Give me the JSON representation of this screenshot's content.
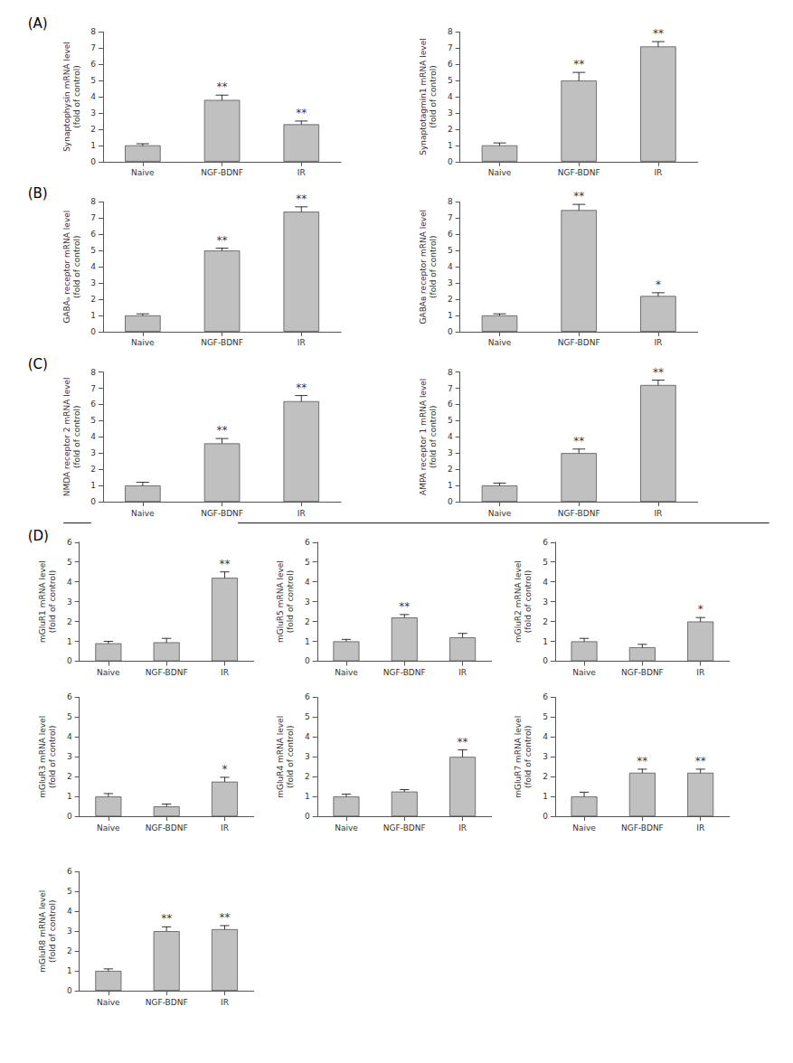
{
  "chart_data": [
    {
      "type": "bar",
      "section": "(A)",
      "ylabel": "Synaptophysin mRNA level\n(fold of control)",
      "categories": [
        "Naive",
        "NGF-BDNF",
        "IR"
      ],
      "values": [
        1.0,
        3.8,
        2.3
      ],
      "errors": [
        0.1,
        0.3,
        0.2
      ],
      "color": "#c0c0c0",
      "ylim": [
        0,
        8
      ],
      "yticks": [
        0,
        1,
        2,
        3,
        4,
        5,
        6,
        7,
        8
      ],
      "grid": false,
      "annotations": [
        {
          "x": "NGF-BDNF",
          "text": "**"
        },
        {
          "x": "IR",
          "text": "**"
        }
      ]
    },
    {
      "type": "bar",
      "ylabel": "Synaptotagmin1 mRNA level\n(fold of control)",
      "categories": [
        "Naive",
        "NGF-BDNF",
        "IR"
      ],
      "values": [
        1.0,
        5.0,
        7.1
      ],
      "errors": [
        0.15,
        0.5,
        0.3
      ],
      "color": "#c0c0c0",
      "ylim": [
        0,
        8
      ],
      "yticks": [
        0,
        1,
        2,
        3,
        4,
        5,
        6,
        7,
        8
      ],
      "grid": false,
      "annotations": [
        {
          "x": "NGF-BDNF",
          "text": "**"
        },
        {
          "x": "IR",
          "text": "**"
        }
      ]
    },
    {
      "type": "bar",
      "section": "(B)",
      "ylabel": "GABAₐ receptor mRNA level\n(fold of control)",
      "categories": [
        "Naive",
        "NGF-BDNF",
        "IR"
      ],
      "values": [
        1.0,
        5.0,
        7.4
      ],
      "errors": [
        0.1,
        0.15,
        0.3
      ],
      "color": "#c0c0c0",
      "ylim": [
        0,
        8
      ],
      "yticks": [
        0,
        1,
        2,
        3,
        4,
        5,
        6,
        7,
        8
      ],
      "grid": false,
      "annotations": [
        {
          "x": "NGF-BDNF",
          "text": "**"
        },
        {
          "x": "IR",
          "text": "**"
        }
      ]
    },
    {
      "type": "bar",
      "ylabel": "GABAʙ receptor mRNA level\n(fold of control)",
      "categories": [
        "Naive",
        "NGF-BDNF",
        "IR"
      ],
      "values": [
        1.0,
        7.5,
        2.2
      ],
      "errors": [
        0.1,
        0.35,
        0.2
      ],
      "color": "#c0c0c0",
      "ylim": [
        0,
        8
      ],
      "yticks": [
        0,
        1,
        2,
        3,
        4,
        5,
        6,
        7,
        8
      ],
      "grid": false,
      "annotations": [
        {
          "x": "NGF-BDNF",
          "text": "**"
        },
        {
          "x": "IR",
          "text": "*"
        }
      ]
    },
    {
      "type": "bar",
      "section": "(C)",
      "ylabel": "NMDA receptor 2 mRNA level\n(fold of control)",
      "categories": [
        "Naive",
        "NGF-BDNF",
        "IR"
      ],
      "values": [
        1.0,
        3.6,
        6.2
      ],
      "errors": [
        0.2,
        0.3,
        0.35
      ],
      "color": "#c0c0c0",
      "ylim": [
        0,
        8
      ],
      "yticks": [
        0,
        1,
        2,
        3,
        4,
        5,
        6,
        7,
        8
      ],
      "grid": false,
      "annotations": [
        {
          "x": "NGF-BDNF",
          "text": "**"
        },
        {
          "x": "IR",
          "text": "**"
        }
      ]
    },
    {
      "type": "bar",
      "ylabel": "AMPA receptor 1 mRNA level\n(fold of control)",
      "categories": [
        "Naive",
        "NGF-BDNF",
        "IR"
      ],
      "values": [
        1.0,
        3.0,
        7.2
      ],
      "errors": [
        0.15,
        0.25,
        0.3
      ],
      "color": "#c0c0c0",
      "ylim": [
        0,
        8
      ],
      "yticks": [
        0,
        1,
        2,
        3,
        4,
        5,
        6,
        7,
        8
      ],
      "grid": false,
      "annotations": [
        {
          "x": "NGF-BDNF",
          "text": "**"
        },
        {
          "x": "IR",
          "text": "**"
        }
      ]
    },
    {
      "type": "bar",
      "section": "(D)",
      "ylabel": "mGluR1 mRNA level\n(fold of control)",
      "categories": [
        "Naive",
        "NGF-BDNF",
        "IR"
      ],
      "values": [
        0.9,
        0.95,
        4.2
      ],
      "errors": [
        0.1,
        0.2,
        0.3
      ],
      "color": "#c0c0c0",
      "ylim": [
        0,
        6
      ],
      "yticks": [
        0,
        1,
        2,
        3,
        4,
        5,
        6
      ],
      "grid": false,
      "annotations": [
        {
          "x": "IR",
          "text": "**"
        }
      ]
    },
    {
      "type": "bar",
      "ylabel": "mGluR5 mRNA level\n(fold of control)",
      "categories": [
        "Naive",
        "NGF-BDNF",
        "IR"
      ],
      "values": [
        1.0,
        2.2,
        1.2
      ],
      "errors": [
        0.1,
        0.15,
        0.2
      ],
      "color": "#c0c0c0",
      "ylim": [
        0,
        6
      ],
      "yticks": [
        0,
        1,
        2,
        3,
        4,
        5,
        6
      ],
      "grid": false,
      "annotations": [
        {
          "x": "NGF-BDNF",
          "text": "**"
        }
      ]
    },
    {
      "type": "bar",
      "ylabel": "mGluR2 mRNA level\n(fold of control)",
      "categories": [
        "Naive",
        "NGF-BDNF",
        "IR"
      ],
      "values": [
        1.0,
        0.7,
        2.0
      ],
      "errors": [
        0.15,
        0.15,
        0.2
      ],
      "color": "#c0c0c0",
      "ylim": [
        0,
        6
      ],
      "yticks": [
        0,
        1,
        2,
        3,
        4,
        5,
        6
      ],
      "grid": false,
      "annotations": [
        {
          "x": "IR",
          "text": "*"
        }
      ]
    },
    {
      "type": "bar",
      "ylabel": "mGluR3 mRNA level\n(fold of control)",
      "categories": [
        "Naive",
        "NGF-BDNF",
        "IR"
      ],
      "values": [
        1.0,
        0.5,
        1.75
      ],
      "errors": [
        0.15,
        0.12,
        0.22
      ],
      "color": "#c0c0c0",
      "ylim": [
        0,
        6
      ],
      "yticks": [
        0,
        1,
        2,
        3,
        4,
        5,
        6
      ],
      "grid": false,
      "annotations": [
        {
          "x": "IR",
          "text": "*"
        }
      ]
    },
    {
      "type": "bar",
      "ylabel": "mGluR4 mRNA level\n(fold of control)",
      "categories": [
        "Naive",
        "NGF-BDNF",
        "IR"
      ],
      "values": [
        1.0,
        1.25,
        3.0
      ],
      "errors": [
        0.12,
        0.1,
        0.35
      ],
      "color": "#c0c0c0",
      "ylim": [
        0,
        6
      ],
      "yticks": [
        0,
        1,
        2,
        3,
        4,
        5,
        6
      ],
      "grid": false,
      "annotations": [
        {
          "x": "IR",
          "text": "**"
        }
      ]
    },
    {
      "type": "bar",
      "ylabel": "mGluR7 mRNA level\n(fold of control)",
      "categories": [
        "Naive",
        "NGF-BDNF",
        "IR"
      ],
      "values": [
        1.0,
        2.2,
        2.2
      ],
      "errors": [
        0.22,
        0.18,
        0.18
      ],
      "color": "#c0c0c0",
      "ylim": [
        0,
        6
      ],
      "yticks": [
        0,
        1,
        2,
        3,
        4,
        5,
        6
      ],
      "grid": false,
      "annotations": [
        {
          "x": "NGF-BDNF",
          "text": "**"
        },
        {
          "x": "IR",
          "text": "**"
        }
      ]
    },
    {
      "type": "bar",
      "ylabel": "mGluR8 mRNA level\n(fold of control)",
      "categories": [
        "Naive",
        "NGF-BDNF",
        "IR"
      ],
      "values": [
        1.0,
        3.0,
        3.1
      ],
      "errors": [
        0.1,
        0.22,
        0.18
      ],
      "color": "#c0c0c0",
      "ylim": [
        0,
        6
      ],
      "yticks": [
        0,
        1,
        2,
        3,
        4,
        5,
        6
      ],
      "grid": false,
      "annotations": [
        {
          "x": "NGF-BDNF",
          "text": "**"
        },
        {
          "x": "IR",
          "text": "**"
        }
      ]
    }
  ]
}
